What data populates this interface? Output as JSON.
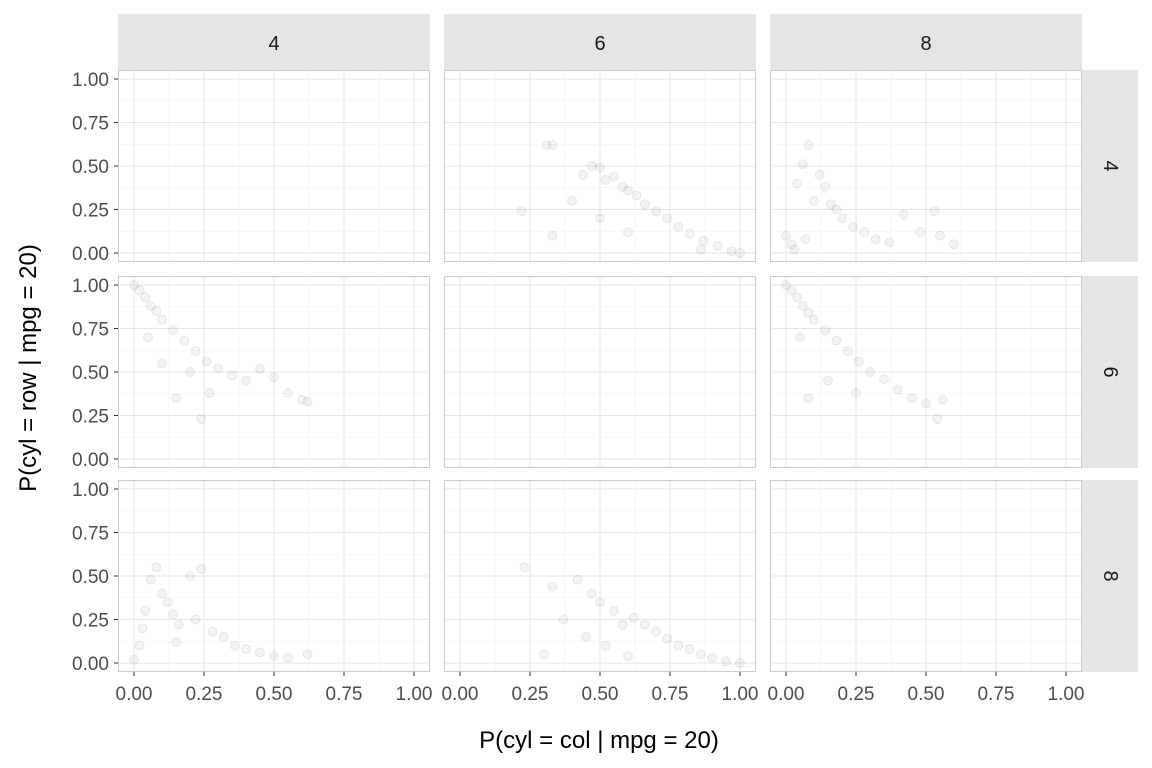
{
  "chart_data": {
    "type": "scatter",
    "title": "",
    "xlabel": "P(cyl = col | mpg = 20)",
    "ylabel": "P(cyl = row | mpg = 20)",
    "col_facets": [
      "4",
      "6",
      "8"
    ],
    "row_facets": [
      "4",
      "6",
      "8"
    ],
    "xlim": [
      0,
      1
    ],
    "ylim": [
      0,
      1
    ],
    "x_ticks": [
      "0.00",
      "0.25",
      "0.50",
      "0.75",
      "1.00"
    ],
    "y_ticks": [
      "0.00",
      "0.25",
      "0.50",
      "0.75",
      "1.00"
    ],
    "grid": true,
    "point_color": "#1a1a1a",
    "point_alpha": 0.05,
    "panels": [
      {
        "row": "4",
        "col": "4",
        "points": []
      },
      {
        "row": "4",
        "col": "6",
        "points": [
          [
            0.31,
            0.62
          ],
          [
            0.33,
            0.62
          ],
          [
            0.44,
            0.45
          ],
          [
            0.47,
            0.5
          ],
          [
            0.5,
            0.49
          ],
          [
            0.52,
            0.42
          ],
          [
            0.55,
            0.44
          ],
          [
            0.58,
            0.38
          ],
          [
            0.6,
            0.36
          ],
          [
            0.63,
            0.33
          ],
          [
            0.66,
            0.28
          ],
          [
            0.7,
            0.24
          ],
          [
            0.74,
            0.2
          ],
          [
            0.78,
            0.15
          ],
          [
            0.82,
            0.11
          ],
          [
            0.87,
            0.07
          ],
          [
            0.92,
            0.04
          ],
          [
            0.97,
            0.01
          ],
          [
            1.0,
            0.0
          ],
          [
            0.22,
            0.24
          ],
          [
            0.33,
            0.1
          ],
          [
            0.4,
            0.3
          ],
          [
            0.6,
            0.12
          ],
          [
            0.5,
            0.2
          ],
          [
            0.86,
            0.02
          ]
        ]
      },
      {
        "row": "4",
        "col": "8",
        "points": [
          [
            0.0,
            0.1
          ],
          [
            0.02,
            0.05
          ],
          [
            0.04,
            0.4
          ],
          [
            0.06,
            0.51
          ],
          [
            0.08,
            0.62
          ],
          [
            0.1,
            0.3
          ],
          [
            0.12,
            0.45
          ],
          [
            0.14,
            0.38
          ],
          [
            0.16,
            0.28
          ],
          [
            0.18,
            0.25
          ],
          [
            0.2,
            0.2
          ],
          [
            0.24,
            0.15
          ],
          [
            0.28,
            0.12
          ],
          [
            0.32,
            0.08
          ],
          [
            0.37,
            0.06
          ],
          [
            0.42,
            0.22
          ],
          [
            0.48,
            0.12
          ],
          [
            0.53,
            0.24
          ],
          [
            0.55,
            0.1
          ],
          [
            0.6,
            0.05
          ],
          [
            0.03,
            0.02
          ],
          [
            0.07,
            0.08
          ]
        ]
      },
      {
        "row": "6",
        "col": "4",
        "points": [
          [
            0.0,
            1.0
          ],
          [
            0.02,
            0.97
          ],
          [
            0.04,
            0.93
          ],
          [
            0.06,
            0.88
          ],
          [
            0.08,
            0.85
          ],
          [
            0.1,
            0.8
          ],
          [
            0.14,
            0.74
          ],
          [
            0.18,
            0.68
          ],
          [
            0.22,
            0.62
          ],
          [
            0.26,
            0.56
          ],
          [
            0.3,
            0.52
          ],
          [
            0.35,
            0.48
          ],
          [
            0.4,
            0.45
          ],
          [
            0.45,
            0.52
          ],
          [
            0.5,
            0.47
          ],
          [
            0.55,
            0.38
          ],
          [
            0.6,
            0.34
          ],
          [
            0.62,
            0.33
          ],
          [
            0.05,
            0.7
          ],
          [
            0.1,
            0.55
          ],
          [
            0.2,
            0.5
          ],
          [
            0.24,
            0.23
          ],
          [
            0.27,
            0.38
          ],
          [
            0.15,
            0.35
          ]
        ]
      },
      {
        "row": "6",
        "col": "6",
        "points": []
      },
      {
        "row": "6",
        "col": "8",
        "points": [
          [
            0.0,
            1.0
          ],
          [
            0.02,
            0.97
          ],
          [
            0.04,
            0.93
          ],
          [
            0.06,
            0.88
          ],
          [
            0.08,
            0.84
          ],
          [
            0.1,
            0.8
          ],
          [
            0.14,
            0.74
          ],
          [
            0.18,
            0.68
          ],
          [
            0.22,
            0.62
          ],
          [
            0.26,
            0.56
          ],
          [
            0.3,
            0.5
          ],
          [
            0.35,
            0.46
          ],
          [
            0.4,
            0.4
          ],
          [
            0.45,
            0.35
          ],
          [
            0.5,
            0.32
          ],
          [
            0.54,
            0.23
          ],
          [
            0.56,
            0.34
          ],
          [
            0.05,
            0.7
          ],
          [
            0.08,
            0.35
          ],
          [
            0.15,
            0.45
          ],
          [
            0.25,
            0.38
          ]
        ]
      },
      {
        "row": "8",
        "col": "4",
        "points": [
          [
            0.0,
            0.02
          ],
          [
            0.02,
            0.1
          ],
          [
            0.04,
            0.3
          ],
          [
            0.06,
            0.48
          ],
          [
            0.08,
            0.55
          ],
          [
            0.1,
            0.4
          ],
          [
            0.12,
            0.35
          ],
          [
            0.14,
            0.28
          ],
          [
            0.16,
            0.22
          ],
          [
            0.2,
            0.5
          ],
          [
            0.24,
            0.54
          ],
          [
            0.28,
            0.18
          ],
          [
            0.32,
            0.15
          ],
          [
            0.36,
            0.1
          ],
          [
            0.4,
            0.08
          ],
          [
            0.45,
            0.06
          ],
          [
            0.5,
            0.04
          ],
          [
            0.55,
            0.03
          ],
          [
            0.62,
            0.05
          ],
          [
            0.03,
            0.2
          ],
          [
            0.15,
            0.12
          ],
          [
            0.22,
            0.25
          ]
        ]
      },
      {
        "row": "8",
        "col": "6",
        "points": [
          [
            0.23,
            0.55
          ],
          [
            0.33,
            0.44
          ],
          [
            0.37,
            0.25
          ],
          [
            0.42,
            0.48
          ],
          [
            0.47,
            0.4
          ],
          [
            0.5,
            0.35
          ],
          [
            0.55,
            0.3
          ],
          [
            0.58,
            0.22
          ],
          [
            0.62,
            0.26
          ],
          [
            0.66,
            0.22
          ],
          [
            0.7,
            0.18
          ],
          [
            0.74,
            0.14
          ],
          [
            0.78,
            0.1
          ],
          [
            0.82,
            0.08
          ],
          [
            0.86,
            0.05
          ],
          [
            0.9,
            0.03
          ],
          [
            0.95,
            0.01
          ],
          [
            1.0,
            0.0
          ],
          [
            0.3,
            0.05
          ],
          [
            0.45,
            0.15
          ],
          [
            0.52,
            0.1
          ],
          [
            0.6,
            0.04
          ]
        ]
      },
      {
        "row": "8",
        "col": "8",
        "points": []
      }
    ]
  }
}
